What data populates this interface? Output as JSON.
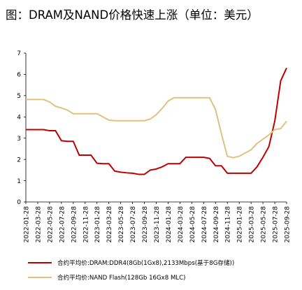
{
  "chart_data": {
    "type": "line",
    "title": "图：DRAM及NAND价格快速上涨（单位：美元）",
    "xlabel": "",
    "ylabel": "",
    "ylim": [
      0,
      7
    ],
    "yticks": [
      "0",
      "1",
      "2",
      "3",
      "4",
      "5",
      "6",
      "7"
    ],
    "grid": false,
    "legend_position": "bottom",
    "x_tick_labels": [
      "2022-01-28",
      "2022-03-28",
      "2022-05-28",
      "2022-07-28",
      "2022-09-28",
      "2022-11-28",
      "2023-01-28",
      "2023-03-28",
      "2023-05-28",
      "2023-07-28",
      "2023-09-28",
      "2023-11-28",
      "2024-01-28",
      "2024-03-28",
      "2024-05-28",
      "2024-07-28",
      "2024-09-28",
      "2024-11-28",
      "2025-01-28",
      "2025-03-28",
      "2025-05-28",
      "2025-07-28",
      "2025-09-28"
    ],
    "series": [
      {
        "name": "合约平均价:DRAM:DDR4(8Gb(1Gx8),2133Mbps(基于8G存储))",
        "color": "#c00000",
        "points": [
          [
            "2022-01-28",
            3.4
          ],
          [
            "2022-04-28",
            3.4
          ],
          [
            "2022-05-28",
            3.35
          ],
          [
            "2022-06-28",
            3.35
          ],
          [
            "2022-07-28",
            2.88
          ],
          [
            "2022-08-28",
            2.85
          ],
          [
            "2022-09-28",
            2.85
          ],
          [
            "2022-10-28",
            2.2
          ],
          [
            "2022-11-28",
            2.2
          ],
          [
            "2022-12-28",
            2.2
          ],
          [
            "2023-01-28",
            1.82
          ],
          [
            "2023-02-28",
            1.8
          ],
          [
            "2023-03-28",
            1.8
          ],
          [
            "2023-04-28",
            1.45
          ],
          [
            "2023-05-28",
            1.4
          ],
          [
            "2023-06-28",
            1.37
          ],
          [
            "2023-07-28",
            1.35
          ],
          [
            "2023-08-28",
            1.3
          ],
          [
            "2023-09-28",
            1.3
          ],
          [
            "2023-10-28",
            1.5
          ],
          [
            "2023-11-28",
            1.55
          ],
          [
            "2023-12-28",
            1.65
          ],
          [
            "2024-01-28",
            1.8
          ],
          [
            "2024-02-28",
            1.8
          ],
          [
            "2024-03-28",
            1.8
          ],
          [
            "2024-04-28",
            2.1
          ],
          [
            "2024-05-28",
            2.1
          ],
          [
            "2024-06-28",
            2.1
          ],
          [
            "2024-07-28",
            2.1
          ],
          [
            "2024-08-28",
            2.05
          ],
          [
            "2024-09-28",
            1.7
          ],
          [
            "2024-10-28",
            1.7
          ],
          [
            "2024-11-28",
            1.35
          ],
          [
            "2024-12-28",
            1.35
          ],
          [
            "2025-01-28",
            1.35
          ],
          [
            "2025-02-28",
            1.35
          ],
          [
            "2025-03-28",
            1.35
          ],
          [
            "2025-04-28",
            1.65
          ],
          [
            "2025-05-28",
            2.1
          ],
          [
            "2025-06-28",
            2.6
          ],
          [
            "2025-07-28",
            3.8
          ],
          [
            "2025-08-28",
            5.7
          ],
          [
            "2025-09-28",
            6.3
          ]
        ]
      },
      {
        "name": "合约平均价:NAND Flash(128Gb 16Gx8 MLC)",
        "color": "#e2c080",
        "points": [
          [
            "2022-01-28",
            4.82
          ],
          [
            "2022-04-28",
            4.82
          ],
          [
            "2022-05-28",
            4.7
          ],
          [
            "2022-06-28",
            4.5
          ],
          [
            "2022-07-28",
            4.42
          ],
          [
            "2022-08-28",
            4.32
          ],
          [
            "2022-09-28",
            4.15
          ],
          [
            "2022-10-28",
            4.15
          ],
          [
            "2022-11-28",
            4.15
          ],
          [
            "2022-12-28",
            4.15
          ],
          [
            "2023-01-28",
            4.15
          ],
          [
            "2023-02-28",
            4.0
          ],
          [
            "2023-03-28",
            3.85
          ],
          [
            "2023-04-28",
            3.82
          ],
          [
            "2023-05-28",
            3.82
          ],
          [
            "2023-06-28",
            3.82
          ],
          [
            "2023-07-28",
            3.82
          ],
          [
            "2023-08-28",
            3.82
          ],
          [
            "2023-09-28",
            3.82
          ],
          [
            "2023-10-28",
            3.9
          ],
          [
            "2023-11-28",
            4.1
          ],
          [
            "2023-12-28",
            4.4
          ],
          [
            "2024-01-28",
            4.75
          ],
          [
            "2024-02-28",
            4.9
          ],
          [
            "2024-03-28",
            4.9
          ],
          [
            "2024-04-28",
            4.9
          ],
          [
            "2024-05-28",
            4.9
          ],
          [
            "2024-06-28",
            4.9
          ],
          [
            "2024-07-28",
            4.9
          ],
          [
            "2024-08-28",
            4.9
          ],
          [
            "2024-09-28",
            4.35
          ],
          [
            "2024-10-28",
            3.2
          ],
          [
            "2024-11-28",
            2.15
          ],
          [
            "2024-12-28",
            2.08
          ],
          [
            "2025-01-28",
            2.15
          ],
          [
            "2025-02-28",
            2.3
          ],
          [
            "2025-03-28",
            2.45
          ],
          [
            "2025-04-28",
            2.75
          ],
          [
            "2025-05-28",
            2.95
          ],
          [
            "2025-06-28",
            3.15
          ],
          [
            "2025-07-28",
            3.4
          ],
          [
            "2025-08-28",
            3.45
          ],
          [
            "2025-09-28",
            3.8
          ]
        ]
      }
    ]
  }
}
